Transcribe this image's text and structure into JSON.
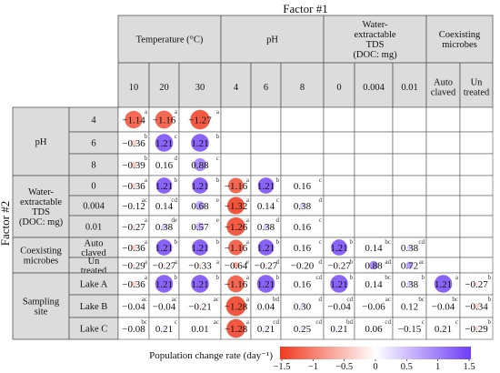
{
  "factor1_label": "Factor #1",
  "factor2_label": "Factor #2",
  "colorbar": {
    "label": "Population change rate (day⁻¹)",
    "ticks": [
      "−1.5",
      "−1",
      "−0.5",
      "0",
      "0.5",
      "1",
      "1.5"
    ],
    "min": -1.5,
    "max": 1.5,
    "negative_color": "#f03b20",
    "neutral_color": "#ffffff",
    "positive_color": "#6e3df5"
  },
  "chart_data": {
    "type": "heatmap",
    "column_groups": [
      {
        "name": "Temperature (°C)",
        "columns": [
          "10",
          "20",
          "30"
        ]
      },
      {
        "name": "pH",
        "columns": [
          "4",
          "6",
          "8"
        ]
      },
      {
        "name": "Water-\nextractable\nTDS\n(DOC: mg)",
        "columns": [
          "0",
          "0.004",
          "0.01"
        ]
      },
      {
        "name": "Coexisting\nmicrobes",
        "columns": [
          "Auto\nclaved",
          "Un\ntreated"
        ]
      }
    ],
    "row_groups": [
      {
        "name": "pH",
        "rows": [
          {
            "label": "4",
            "cells": [
              {
                "col": 0,
                "value": -1.14,
                "text": "−1.14",
                "letter": "a"
              },
              {
                "col": 1,
                "value": -1.16,
                "text": "−1.16",
                "letter": "a"
              },
              {
                "col": 2,
                "value": -1.27,
                "text": "−1.27",
                "letter": "a"
              }
            ]
          },
          {
            "label": "6",
            "cells": [
              {
                "col": 0,
                "value": -0.36,
                "text": "−0.36",
                "letter": "b"
              },
              {
                "col": 1,
                "value": 1.21,
                "text": "1.21",
                "letter": "c"
              },
              {
                "col": 2,
                "value": 1.21,
                "text": "1.21",
                "letter": "b"
              }
            ]
          },
          {
            "label": "8",
            "cells": [
              {
                "col": 0,
                "value": -0.39,
                "text": "−0.39",
                "letter": "b"
              },
              {
                "col": 1,
                "value": 0.16,
                "text": "0.16",
                "letter": "d"
              },
              {
                "col": 2,
                "value": 0.88,
                "text": "0.88",
                "letter": "c"
              }
            ]
          }
        ]
      },
      {
        "name": "Water-\nextractable\nTDS\n(DOC: mg)",
        "rows": [
          {
            "label": "0",
            "cells": [
              {
                "col": 0,
                "value": -0.36,
                "text": "−0.36",
                "letter": "a"
              },
              {
                "col": 1,
                "value": 1.21,
                "text": "1.21",
                "letter": "b"
              },
              {
                "col": 2,
                "value": 1.21,
                "text": "1.21",
                "letter": "b"
              },
              {
                "col": 3,
                "value": -1.16,
                "text": "−1.16",
                "letter": "a"
              },
              {
                "col": 4,
                "value": 1.21,
                "text": "1.21",
                "letter": "b"
              },
              {
                "col": 5,
                "value": 0.16,
                "text": "0.16",
                "letter": "c"
              }
            ]
          },
          {
            "label": "0.004",
            "cells": [
              {
                "col": 0,
                "value": -0.12,
                "text": "−0.12",
                "letter": "ac"
              },
              {
                "col": 1,
                "value": 0.14,
                "text": "0.14",
                "letter": "cd"
              },
              {
                "col": 2,
                "value": 0.68,
                "text": "0.68",
                "letter": "e"
              },
              {
                "col": 3,
                "value": -1.32,
                "text": "−1.32",
                "letter": "a"
              },
              {
                "col": 4,
                "value": 0.14,
                "text": "0.14",
                "letter": "c"
              },
              {
                "col": 5,
                "value": 0.38,
                "text": "0.38",
                "letter": "d"
              }
            ]
          },
          {
            "label": "0.01",
            "cells": [
              {
                "col": 0,
                "value": -0.27,
                "text": "−0.27",
                "letter": "a"
              },
              {
                "col": 1,
                "value": 0.38,
                "text": "0.38",
                "letter": "de"
              },
              {
                "col": 2,
                "value": 0.57,
                "text": "0.57",
                "letter": "e"
              },
              {
                "col": 3,
                "value": -1.26,
                "text": "−1.26",
                "letter": "a"
              },
              {
                "col": 4,
                "value": 0.38,
                "text": "0.38",
                "letter": "d"
              },
              {
                "col": 5,
                "value": 0.16,
                "text": "0.16",
                "letter": "c"
              }
            ]
          }
        ]
      },
      {
        "name": "Coexisting\nmicrobes",
        "rows": [
          {
            "label": "Auto\nclaved",
            "cells": [
              {
                "col": 0,
                "value": -0.36,
                "text": "−0.36",
                "letter": "a"
              },
              {
                "col": 1,
                "value": 1.21,
                "text": "1.21",
                "letter": "b"
              },
              {
                "col": 2,
                "value": 1.21,
                "text": "1.21",
                "letter": "b"
              },
              {
                "col": 3,
                "value": -1.16,
                "text": "−1.16",
                "letter": "a"
              },
              {
                "col": 4,
                "value": 1.21,
                "text": "1.21",
                "letter": "b"
              },
              {
                "col": 5,
                "value": 0.16,
                "text": "0.16",
                "letter": "c"
              },
              {
                "col": 6,
                "value": 1.21,
                "text": "1.21",
                "letter": "b"
              },
              {
                "col": 7,
                "value": 0.14,
                "text": "0.14",
                "letter": "bc"
              },
              {
                "col": 8,
                "value": 0.38,
                "text": "0.38",
                "letter": "cd"
              }
            ]
          },
          {
            "label": "Un\ntreated",
            "cells": [
              {
                "col": 0,
                "value": -0.29,
                "text": "−0.29",
                "letter": "a"
              },
              {
                "col": 1,
                "value": -0.27,
                "text": "−0.27",
                "letter": "a"
              },
              {
                "col": 2,
                "value": -0.33,
                "text": "−0.33",
                "letter": "a"
              },
              {
                "col": 3,
                "value": -0.64,
                "text": "−0.64",
                "letter": "e"
              },
              {
                "col": 4,
                "value": -0.27,
                "text": "−0.27",
                "letter": "d"
              },
              {
                "col": 5,
                "value": -0.2,
                "text": "−0.20",
                "letter": "d"
              },
              {
                "col": 6,
                "value": -0.27,
                "text": "−0.27",
                "letter": "b"
              },
              {
                "col": 7,
                "value": 0.88,
                "text": "0.88",
                "letter": "ad"
              },
              {
                "col": 8,
                "value": 0.72,
                "text": "0.72",
                "letter": "ac"
              }
            ]
          }
        ]
      },
      {
        "name": "Sampling\nsite",
        "rows": [
          {
            "label": "Lake A",
            "cells": [
              {
                "col": 0,
                "value": -0.36,
                "text": "−0.36",
                "letter": "a"
              },
              {
                "col": 1,
                "value": 1.21,
                "text": "1.21",
                "letter": "b"
              },
              {
                "col": 2,
                "value": 1.21,
                "text": "1.21",
                "letter": "b"
              },
              {
                "col": 3,
                "value": -1.16,
                "text": "−1.16",
                "letter": "a"
              },
              {
                "col": 4,
                "value": 1.21,
                "text": "1.21",
                "letter": "b"
              },
              {
                "col": 5,
                "value": 0.16,
                "text": "0.16",
                "letter": "cd"
              },
              {
                "col": 6,
                "value": 1.21,
                "text": "1.21",
                "letter": "b"
              },
              {
                "col": 7,
                "value": 0.14,
                "text": "0.14",
                "letter": "bc"
              },
              {
                "col": 8,
                "value": 0.38,
                "text": "0.38",
                "letter": "b"
              },
              {
                "col": 9,
                "value": 1.21,
                "text": "1.21",
                "letter": "a"
              },
              {
                "col": 10,
                "value": -0.27,
                "text": "−0.27",
                "letter": "b"
              }
            ]
          },
          {
            "label": "Lake B",
            "cells": [
              {
                "col": 0,
                "value": -0.04,
                "text": "−0.04",
                "letter": "ac"
              },
              {
                "col": 1,
                "value": -0.04,
                "text": "−0.04",
                "letter": "ac"
              },
              {
                "col": 2,
                "value": -0.21,
                "text": "−0.21",
                "letter": "ac"
              },
              {
                "col": 3,
                "value": -1.28,
                "text": "−1.28",
                "letter": "a"
              },
              {
                "col": 4,
                "value": 0.04,
                "text": "0.04",
                "letter": "bd"
              },
              {
                "col": 5,
                "value": 0.3,
                "text": "0.30",
                "letter": "d"
              },
              {
                "col": 6,
                "value": -0.04,
                "text": "−0.04",
                "letter": "cd"
              },
              {
                "col": 7,
                "value": -0.06,
                "text": "−0.06",
                "letter": "ac"
              },
              {
                "col": 8,
                "value": 0.12,
                "text": "0.12",
                "letter": "bc"
              },
              {
                "col": 9,
                "value": -0.04,
                "text": "−0.04",
                "letter": "bc"
              },
              {
                "col": 10,
                "value": -0.34,
                "text": "−0.34",
                "letter": "b"
              }
            ]
          },
          {
            "label": "Lake C",
            "cells": [
              {
                "col": 0,
                "value": -0.08,
                "text": "−0.08",
                "letter": "bc"
              },
              {
                "col": 1,
                "value": 0.21,
                "text": "0.21",
                "letter": "c"
              },
              {
                "col": 2,
                "value": 0.01,
                "text": "0.01",
                "letter": "ac"
              },
              {
                "col": 3,
                "value": -1.28,
                "text": "−1.28",
                "letter": "a"
              },
              {
                "col": 4,
                "value": 0.21,
                "text": "0.21",
                "letter": "cd"
              },
              {
                "col": 5,
                "value": 0.25,
                "text": "0.25",
                "letter": "cd"
              },
              {
                "col": 6,
                "value": 0.21,
                "text": "0.21",
                "letter": "bd"
              },
              {
                "col": 7,
                "value": 0.06,
                "text": "0.06",
                "letter": "cd"
              },
              {
                "col": 8,
                "value": -0.15,
                "text": "−0.15",
                "letter": "c"
              },
              {
                "col": 9,
                "value": 0.21,
                "text": "0.21",
                "letter": "c"
              },
              {
                "col": 10,
                "value": -0.29,
                "text": "−0.29",
                "letter": "b"
              }
            ]
          }
        ]
      }
    ]
  }
}
